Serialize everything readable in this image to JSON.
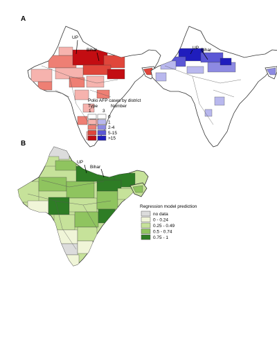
{
  "panels": {
    "a": {
      "label": "A"
    },
    "b": {
      "label": "B"
    }
  },
  "map_labels": {
    "up": "UP",
    "bihar": "Bihar"
  },
  "afp_legend": {
    "title": "Polio AFP cases by district",
    "type_header": "Type",
    "number_header": "Number",
    "type_1": "1",
    "type_3": "3",
    "categories": [
      "0",
      "1",
      "2-4",
      "5-15",
      ">15"
    ],
    "type1_colors": [
      "#ffffff",
      "#f6b3ae",
      "#ee7f74",
      "#e0463b",
      "#c30d12"
    ],
    "type3_colors": [
      "#ffffff",
      "#b9b8ee",
      "#8d8ae2",
      "#5b57d6",
      "#1f1dbd"
    ]
  },
  "regression_legend": {
    "title": "Regression model prediction",
    "categories": [
      "no data",
      "0 - 0.24",
      "0.25 - 0.49",
      "0.5 - 0.74",
      "0.75 - 1"
    ],
    "colors": [
      "#dcdcdc",
      "#f0f5d8",
      "#c6e29a",
      "#8fc45f",
      "#2e7d25"
    ]
  }
}
